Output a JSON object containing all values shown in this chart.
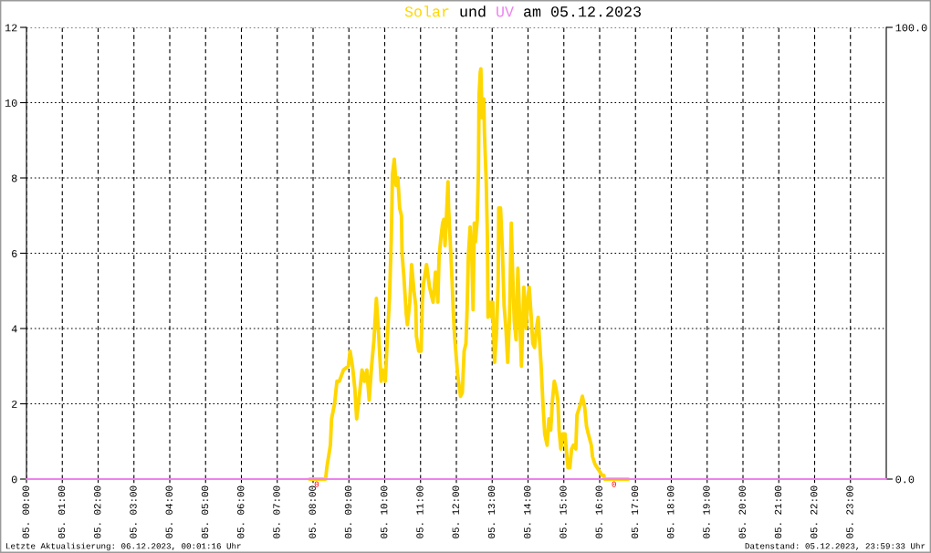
{
  "chart_data": {
    "type": "line",
    "title": "Solar und UV am 05.12.2023",
    "annotations": [
      {
        "text": "0",
        "x": "2023-12-05T08:06",
        "y": 0
      },
      {
        "text": "0",
        "x": "2023-12-05T16:24",
        "y": 0
      },
      "Letzte Aktualisierung: 06.12.2023, 00:01:16 Uhr",
      "Datenstand: 05.12.2023, 23:59:33 Uhr"
    ],
    "xlim": [
      "2023-12-05T00:00",
      "2023-12-06T00:00"
    ],
    "xticks": [
      {
        "value": "2023-12-05T00:00",
        "label": "05. 00:00"
      },
      {
        "value": "2023-12-05T01:00",
        "label": "05. 01:00"
      },
      {
        "value": "2023-12-05T02:00",
        "label": "05. 02:00"
      },
      {
        "value": "2023-12-05T03:00",
        "label": "05. 03:00"
      },
      {
        "value": "2023-12-05T04:00",
        "label": "05. 04:00"
      },
      {
        "value": "2023-12-05T05:00",
        "label": "05. 05:00"
      },
      {
        "value": "2023-12-05T06:00",
        "label": "05. 06:00"
      },
      {
        "value": "2023-12-05T07:00",
        "label": "05. 07:00"
      },
      {
        "value": "2023-12-05T08:00",
        "label": "05. 08:00"
      },
      {
        "value": "2023-12-05T09:00",
        "label": "05. 09:00"
      },
      {
        "value": "2023-12-05T10:00",
        "label": "05. 10:00"
      },
      {
        "value": "2023-12-05T11:00",
        "label": "05. 11:00"
      },
      {
        "value": "2023-12-05T12:00",
        "label": "05. 12:00"
      },
      {
        "value": "2023-12-05T13:00",
        "label": "05. 13:00"
      },
      {
        "value": "2023-12-05T14:00",
        "label": "05. 14:00"
      },
      {
        "value": "2023-12-05T15:00",
        "label": "05. 15:00"
      },
      {
        "value": "2023-12-05T16:00",
        "label": "05. 16:00"
      },
      {
        "value": "2023-12-05T17:00",
        "label": "05. 17:00"
      },
      {
        "value": "2023-12-05T18:00",
        "label": "05. 18:00"
      },
      {
        "value": "2023-12-05T19:00",
        "label": "05. 19:00"
      },
      {
        "value": "2023-12-05T20:00",
        "label": "05. 20:00"
      },
      {
        "value": "2023-12-05T21:00",
        "label": "05. 21:00"
      },
      {
        "value": "2023-12-05T22:00",
        "label": "05. 22:00"
      },
      {
        "value": "2023-12-05T23:00",
        "label": "05. 23:00"
      }
    ],
    "ylim": [
      0,
      12
    ],
    "yticks": [
      0,
      2,
      4,
      6,
      8,
      10,
      12
    ],
    "y2lim": [
      0,
      100
    ],
    "y2ticks": [
      {
        "value": 0,
        "label": "0.0"
      },
      {
        "value": 100,
        "label": "100.0"
      }
    ],
    "grid": true,
    "line_style": "solid",
    "series": [
      {
        "color": "#ffd700",
        "x": [
          "2023-12-05T07:54",
          "2023-12-05T08:21",
          "2023-12-05T08:23",
          "2023-12-05T08:29",
          "2023-12-05T08:31",
          "2023-12-05T08:36",
          "2023-12-05T08:40",
          "2023-12-05T08:44",
          "2023-12-05T08:51",
          "2023-12-05T08:59",
          "2023-12-05T09:02",
          "2023-12-05T09:06",
          "2023-12-05T09:10",
          "2023-12-05T09:13",
          "2023-12-05T09:16",
          "2023-12-05T09:22",
          "2023-12-05T09:26",
          "2023-12-05T09:30",
          "2023-12-05T09:34",
          "2023-12-05T09:38",
          "2023-12-05T09:42",
          "2023-12-05T09:46",
          "2023-12-05T09:50",
          "2023-12-05T09:54",
          "2023-12-05T09:57",
          "2023-12-05T10:01",
          "2023-12-05T10:04",
          "2023-12-05T10:08",
          "2023-12-05T10:11",
          "2023-12-05T10:13",
          "2023-12-05T10:16",
          "2023-12-05T10:19",
          "2023-12-05T10:22",
          "2023-12-05T10:25",
          "2023-12-05T10:28",
          "2023-12-05T10:29",
          "2023-12-05T10:32",
          "2023-12-05T10:36",
          "2023-12-05T10:38",
          "2023-12-05T10:42",
          "2023-12-05T10:45",
          "2023-12-05T10:49",
          "2023-12-05T10:52",
          "2023-12-05T10:53",
          "2023-12-05T10:57",
          "2023-12-05T11:01",
          "2023-12-05T11:03",
          "2023-12-05T11:05",
          "2023-12-05T11:10",
          "2023-12-05T11:15",
          "2023-12-05T11:21",
          "2023-12-05T11:25",
          "2023-12-05T11:29",
          "2023-12-05T11:31",
          "2023-12-05T11:34",
          "2023-12-05T11:37",
          "2023-12-05T11:39",
          "2023-12-05T11:41",
          "2023-12-05T11:44",
          "2023-12-05T11:46",
          "2023-12-05T11:47",
          "2023-12-05T11:51",
          "2023-12-05T11:53",
          "2023-12-05T11:55",
          "2023-12-05T11:57",
          "2023-12-05T11:59",
          "2023-12-05T12:02",
          "2023-12-05T12:07",
          "2023-12-05T12:10",
          "2023-12-05T12:13",
          "2023-12-05T12:16",
          "2023-12-05T12:18",
          "2023-12-05T12:20",
          "2023-12-05T12:23",
          "2023-12-05T12:26",
          "2023-12-05T12:28",
          "2023-12-05T12:30",
          "2023-12-05T12:32",
          "2023-12-05T12:35",
          "2023-12-05T12:37",
          "2023-12-05T12:38",
          "2023-12-05T12:40",
          "2023-12-05T12:41",
          "2023-12-05T12:43",
          "2023-12-05T12:46",
          "2023-12-05T12:47",
          "2023-12-05T12:50",
          "2023-12-05T12:52",
          "2023-12-05T12:53",
          "2023-12-05T12:56",
          "2023-12-05T12:59",
          "2023-12-05T13:01",
          "2023-12-05T13:04",
          "2023-12-05T13:07",
          "2023-12-05T13:10",
          "2023-12-05T13:11",
          "2023-12-05T13:14",
          "2023-12-05T13:17",
          "2023-12-05T13:20",
          "2023-12-05T13:23",
          "2023-12-05T13:26",
          "2023-12-05T13:29",
          "2023-12-05T13:32",
          "2023-12-05T13:34",
          "2023-12-05T13:37",
          "2023-12-05T13:40",
          "2023-12-05T13:43",
          "2023-12-05T13:46",
          "2023-12-05T13:49",
          "2023-12-05T13:52",
          "2023-12-05T13:53",
          "2023-12-05T13:57",
          "2023-12-05T13:59",
          "2023-12-05T14:02",
          "2023-12-05T14:05",
          "2023-12-05T14:08",
          "2023-12-05T14:11",
          "2023-12-05T14:14",
          "2023-12-05T14:17",
          "2023-12-05T14:20",
          "2023-12-05T14:22",
          "2023-12-05T14:25",
          "2023-12-05T14:28",
          "2023-12-05T14:32",
          "2023-12-05T14:35",
          "2023-12-05T14:38",
          "2023-12-05T14:41",
          "2023-12-05T14:44",
          "2023-12-05T14:47",
          "2023-12-05T14:50",
          "2023-12-05T14:52",
          "2023-12-05T14:55",
          "2023-12-05T14:58",
          "2023-12-05T15:02",
          "2023-12-05T15:04",
          "2023-12-05T15:07",
          "2023-12-05T15:10",
          "2023-12-05T15:13",
          "2023-12-05T15:16",
          "2023-12-05T15:20",
          "2023-12-05T15:22",
          "2023-12-05T15:28",
          "2023-12-05T15:31",
          "2023-12-05T15:35",
          "2023-12-05T15:38",
          "2023-12-05T15:41",
          "2023-12-05T15:46",
          "2023-12-05T15:48",
          "2023-12-05T15:52",
          "2023-12-05T15:56",
          "2023-12-05T16:00",
          "2023-12-05T16:04",
          "2023-12-05T16:07",
          "2023-12-05T16:08",
          "2023-12-05T16:48"
        ],
        "values": [
          0,
          0,
          0.3,
          0.9,
          1.6,
          2.0,
          2.6,
          2.6,
          2.9,
          3.0,
          3.4,
          3.0,
          2.4,
          1.6,
          2.0,
          2.9,
          2.6,
          2.9,
          2.1,
          3.0,
          3.7,
          4.8,
          3.8,
          2.6,
          2.9,
          2.6,
          3.6,
          4.8,
          6.4,
          8.1,
          8.5,
          7.8,
          8.0,
          7.2,
          7.0,
          6.0,
          5.4,
          4.4,
          4.1,
          4.7,
          5.7,
          5.0,
          4.6,
          3.8,
          3.4,
          3.4,
          4.7,
          5.2,
          5.7,
          5.1,
          4.7,
          5.5,
          4.7,
          5.9,
          6.4,
          6.8,
          6.9,
          6.2,
          7.2,
          7.9,
          7.2,
          5.9,
          5.2,
          4.4,
          3.8,
          3.4,
          2.8,
          2.2,
          2.3,
          3.4,
          3.6,
          4.5,
          5.9,
          6.7,
          5.8,
          4.5,
          6.8,
          6.3,
          6.9,
          8.2,
          10.2,
          10.8,
          10.9,
          9.6,
          10.1,
          9.2,
          7.9,
          6.4,
          4.3,
          4.7,
          4.3,
          4.7,
          3.1,
          3.8,
          5.2,
          7.2,
          7.2,
          6.1,
          4.6,
          4.0,
          3.1,
          4.3,
          6.8,
          5.6,
          4.2,
          3.7,
          5.6,
          4.3,
          3.0,
          4.6,
          5.1,
          4.0,
          4.7,
          5.1,
          4.4,
          3.6,
          3.5,
          4.0,
          4.3,
          3.5,
          3.0,
          2.0,
          1.2,
          0.9,
          1.6,
          1.3,
          2.1,
          2.6,
          2.4,
          2.1,
          1.3,
          0.8,
          1.2,
          1.2,
          0.8,
          0.3,
          0.3,
          0.8,
          0.9,
          0.8,
          1.7,
          2.0,
          2.2,
          1.9,
          1.4,
          1.2,
          0.9,
          0.6,
          0.4,
          0.3,
          0.2,
          0.1,
          0.1,
          0,
          0
        ]
      },
      {
        "color": "#ee82ee",
        "axis": "y2",
        "x": [
          "2023-12-05T00:00",
          "2023-12-06T00:00"
        ],
        "values": [
          0,
          0
        ]
      }
    ]
  }
}
